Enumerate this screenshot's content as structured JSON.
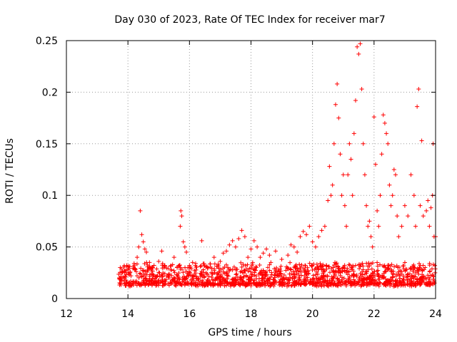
{
  "chart_data": {
    "type": "scatter",
    "title": "Day 030 of 2023, Rate Of TEC Index for receiver mar7",
    "xlabel": "GPS time / hours",
    "ylabel": "ROTI / TECUs",
    "xlim": [
      12,
      24
    ],
    "ylim": [
      0,
      0.25
    ],
    "xticks": [
      12,
      14,
      16,
      18,
      20,
      22,
      24
    ],
    "xtick_labels": [
      "12",
      "14",
      "16",
      "18",
      "20",
      "22",
      "24"
    ],
    "yticks": [
      0,
      0.05,
      0.1,
      0.15,
      0.2,
      0.25
    ],
    "ytick_labels": [
      "0",
      "0.05",
      "0.1",
      "0.15",
      "0.2",
      "0.25"
    ],
    "grid": true,
    "marker": "+",
    "series": [
      {
        "name": "ROTI",
        "color": "#ff0000",
        "points": [
          [
            13.75,
            0.03
          ],
          [
            13.8,
            0.025
          ],
          [
            13.9,
            0.02
          ],
          [
            14.0,
            0.028
          ],
          [
            14.1,
            0.022
          ],
          [
            14.2,
            0.034
          ],
          [
            14.3,
            0.04
          ],
          [
            14.35,
            0.05
          ],
          [
            14.4,
            0.085
          ],
          [
            14.45,
            0.062
          ],
          [
            14.5,
            0.055
          ],
          [
            14.55,
            0.048
          ],
          [
            14.6,
            0.045
          ],
          [
            14.7,
            0.035
          ],
          [
            14.8,
            0.03
          ],
          [
            15.0,
            0.036
          ],
          [
            15.1,
            0.046
          ],
          [
            15.2,
            0.032
          ],
          [
            15.4,
            0.028
          ],
          [
            15.5,
            0.04
          ],
          [
            15.6,
            0.03
          ],
          [
            15.7,
            0.07
          ],
          [
            15.72,
            0.085
          ],
          [
            15.75,
            0.08
          ],
          [
            15.8,
            0.055
          ],
          [
            15.85,
            0.05
          ],
          [
            15.9,
            0.045
          ],
          [
            16.0,
            0.032
          ],
          [
            16.2,
            0.034
          ],
          [
            16.4,
            0.056
          ],
          [
            16.6,
            0.03
          ],
          [
            16.8,
            0.04
          ],
          [
            17.0,
            0.036
          ],
          [
            17.1,
            0.044
          ],
          [
            17.2,
            0.046
          ],
          [
            17.3,
            0.052
          ],
          [
            17.4,
            0.056
          ],
          [
            17.5,
            0.05
          ],
          [
            17.6,
            0.058
          ],
          [
            17.7,
            0.066
          ],
          [
            17.8,
            0.06
          ],
          [
            17.9,
            0.04
          ],
          [
            18.0,
            0.048
          ],
          [
            18.1,
            0.056
          ],
          [
            18.2,
            0.05
          ],
          [
            18.3,
            0.04
          ],
          [
            18.4,
            0.044
          ],
          [
            18.5,
            0.048
          ],
          [
            18.6,
            0.042
          ],
          [
            18.8,
            0.046
          ],
          [
            19.0,
            0.038
          ],
          [
            19.2,
            0.042
          ],
          [
            19.3,
            0.052
          ],
          [
            19.4,
            0.05
          ],
          [
            19.5,
            0.045
          ],
          [
            19.6,
            0.06
          ],
          [
            19.7,
            0.065
          ],
          [
            19.8,
            0.062
          ],
          [
            19.9,
            0.07
          ],
          [
            20.0,
            0.055
          ],
          [
            20.1,
            0.05
          ],
          [
            20.2,
            0.06
          ],
          [
            20.3,
            0.066
          ],
          [
            20.4,
            0.07
          ],
          [
            20.5,
            0.095
          ],
          [
            20.55,
            0.128
          ],
          [
            20.6,
            0.1
          ],
          [
            20.65,
            0.11
          ],
          [
            20.7,
            0.15
          ],
          [
            20.75,
            0.188
          ],
          [
            20.8,
            0.208
          ],
          [
            20.85,
            0.175
          ],
          [
            20.9,
            0.14
          ],
          [
            20.95,
            0.1
          ],
          [
            21.0,
            0.12
          ],
          [
            21.05,
            0.09
          ],
          [
            21.1,
            0.07
          ],
          [
            21.15,
            0.12
          ],
          [
            21.2,
            0.15
          ],
          [
            21.25,
            0.135
          ],
          [
            21.3,
            0.1
          ],
          [
            21.35,
            0.16
          ],
          [
            21.4,
            0.192
          ],
          [
            21.45,
            0.244
          ],
          [
            21.5,
            0.237
          ],
          [
            21.55,
            0.247
          ],
          [
            21.6,
            0.203
          ],
          [
            21.65,
            0.15
          ],
          [
            21.7,
            0.12
          ],
          [
            21.75,
            0.09
          ],
          [
            21.8,
            0.07
          ],
          [
            21.85,
            0.075
          ],
          [
            21.9,
            0.06
          ],
          [
            21.95,
            0.05
          ],
          [
            22.0,
            0.176
          ],
          [
            22.05,
            0.13
          ],
          [
            22.1,
            0.085
          ],
          [
            22.15,
            0.07
          ],
          [
            22.2,
            0.1
          ],
          [
            22.25,
            0.14
          ],
          [
            22.3,
            0.178
          ],
          [
            22.35,
            0.17
          ],
          [
            22.4,
            0.16
          ],
          [
            22.45,
            0.15
          ],
          [
            22.5,
            0.11
          ],
          [
            22.55,
            0.09
          ],
          [
            22.6,
            0.1
          ],
          [
            22.65,
            0.125
          ],
          [
            22.7,
            0.12
          ],
          [
            22.75,
            0.08
          ],
          [
            22.8,
            0.06
          ],
          [
            22.9,
            0.07
          ],
          [
            23.0,
            0.09
          ],
          [
            23.1,
            0.08
          ],
          [
            23.2,
            0.12
          ],
          [
            23.3,
            0.1
          ],
          [
            23.35,
            0.07
          ],
          [
            23.4,
            0.186
          ],
          [
            23.45,
            0.203
          ],
          [
            23.5,
            0.09
          ],
          [
            23.55,
            0.153
          ],
          [
            23.6,
            0.08
          ],
          [
            23.7,
            0.085
          ],
          [
            23.75,
            0.095
          ],
          [
            23.8,
            0.07
          ],
          [
            23.85,
            0.088
          ],
          [
            23.9,
            0.1
          ],
          [
            23.92,
            0.15
          ],
          [
            23.95,
            0.06
          ],
          [
            24.0,
            0.06
          ]
        ],
        "baseline_band": {
          "x_range": [
            13.7,
            24.0
          ],
          "y_range": [
            0.004,
            0.035
          ]
        }
      }
    ]
  }
}
